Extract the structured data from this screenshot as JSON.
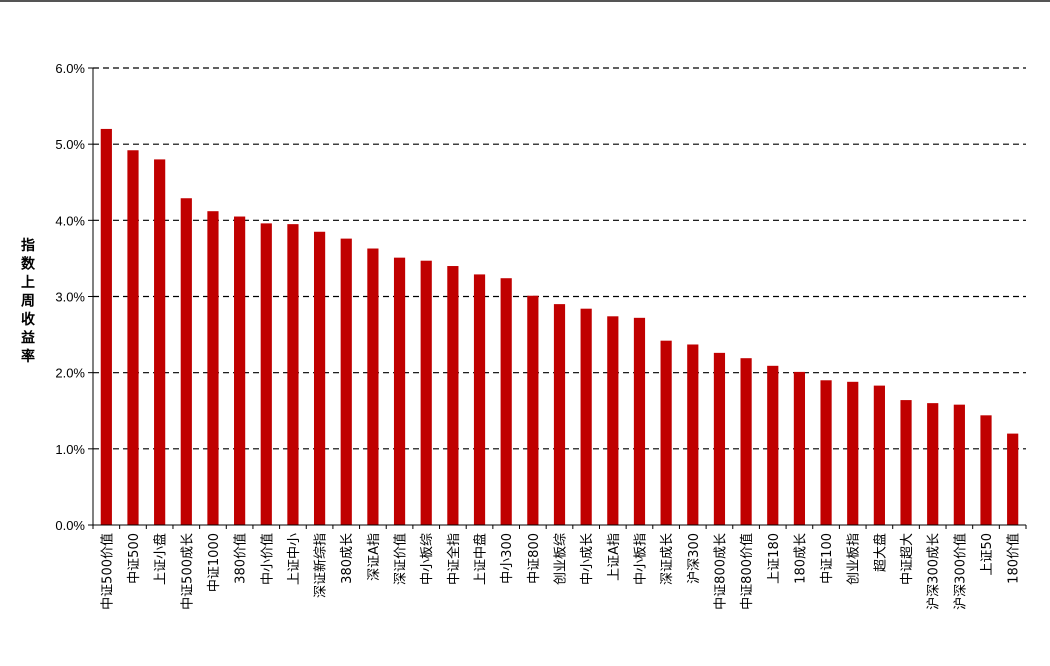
{
  "chart_data": {
    "type": "bar",
    "ylabel": "指数上周收益率",
    "ylim": [
      0,
      6
    ],
    "yticks": [
      "0.0%",
      "1.0%",
      "2.0%",
      "3.0%",
      "4.0%",
      "5.0%",
      "6.0%"
    ],
    "grid": "horizontal-dashed",
    "bar_color": "#c00000",
    "categories": [
      "中证500价值",
      "中证500",
      "上证小盘",
      "中证500成长",
      "中证1000",
      "380价值",
      "中小价值",
      "上证中小",
      "深证新综指",
      "380成长",
      "深证A指",
      "深证价值",
      "中小板综",
      "中证全指",
      "上证中盘",
      "中小300",
      "中证800",
      "创业板综",
      "中小成长",
      "上证A指",
      "中小板指",
      "深证成长",
      "沪深300",
      "中证800成长",
      "中证800价值",
      "上证180",
      "180成长",
      "中证100",
      "创业板指",
      "超大盘",
      "中证超大",
      "沪深300成长",
      "沪深300价值",
      "上证50",
      "180价值"
    ],
    "values": [
      5.2,
      4.92,
      4.8,
      4.29,
      4.12,
      4.05,
      3.96,
      3.95,
      3.85,
      3.76,
      3.63,
      3.51,
      3.47,
      3.4,
      3.29,
      3.24,
      3.01,
      2.9,
      2.84,
      2.74,
      2.72,
      2.42,
      2.37,
      2.26,
      2.19,
      2.09,
      2.01,
      1.9,
      1.88,
      1.83,
      1.64,
      1.6,
      1.58,
      1.44,
      1.2
    ]
  }
}
